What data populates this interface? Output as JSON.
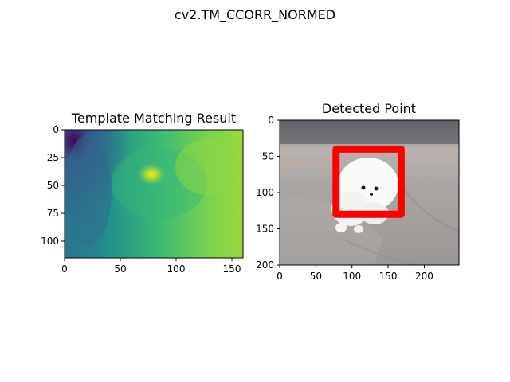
{
  "figure": {
    "suptitle": "cv2.TM_CCORR_NORMED"
  },
  "chart_data": [
    {
      "type": "heatmap",
      "title": "Template Matching Result",
      "xlabel": "",
      "ylabel": "",
      "xlim": [
        0,
        160
      ],
      "ylim": [
        115,
        0
      ],
      "x_ticks": [
        0,
        50,
        100,
        150
      ],
      "y_ticks": [
        0,
        25,
        50,
        75,
        100
      ],
      "colormap": "viridis",
      "peak": {
        "x": 78,
        "y": 40
      },
      "colors": {
        "low": "#440154",
        "mid": "#21918c",
        "high": "#fde725"
      }
    },
    {
      "type": "image",
      "title": "Detected Point",
      "xlabel": "",
      "ylabel": "",
      "xlim": [
        0,
        248
      ],
      "ylim": [
        200,
        0
      ],
      "x_ticks": [
        0,
        50,
        100,
        150,
        200
      ],
      "y_ticks": [
        0,
        50,
        100,
        150,
        200
      ],
      "rectangle": {
        "x0": 78,
        "y0": 40,
        "x1": 168,
        "y1": 130,
        "color": "#ff0000"
      },
      "photo_subject": "white-pomeranian-puppy"
    }
  ]
}
